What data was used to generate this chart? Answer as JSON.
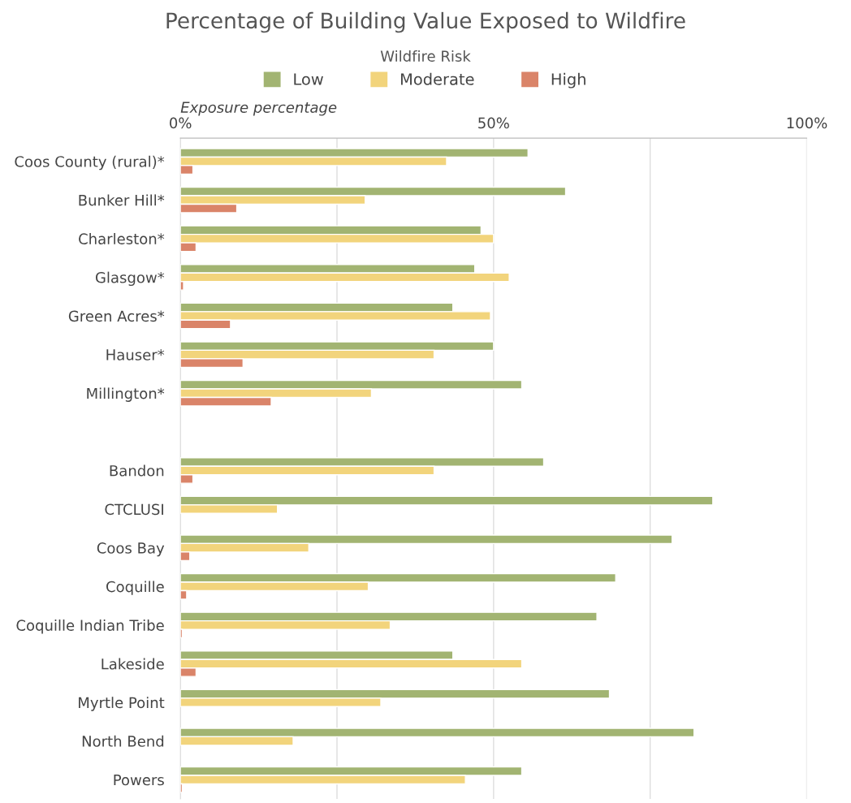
{
  "chart_data": {
    "type": "bar",
    "orientation": "horizontal",
    "title": "Percentage of Building Value Exposed to Wildfire",
    "legend_title": "Wildfire Risk",
    "xlabel": "Exposure percentage",
    "categories": [
      "Coos County (rural)*",
      "Bunker Hill*",
      "Charleston*",
      "Glasgow*",
      "Green Acres*",
      "Hauser*",
      "Millington*",
      null,
      "Bandon",
      "CTCLUSI",
      "Coos Bay",
      "Coquille",
      "Coquille Indian Tribe",
      "Lakeside",
      "Myrtle Point",
      "North Bend",
      "Powers"
    ],
    "series": [
      {
        "name": "Low",
        "color": "#a2b472",
        "values": [
          55.5,
          61.5,
          48,
          47,
          43.5,
          50,
          54.5,
          null,
          58,
          85,
          78.5,
          69.5,
          66.5,
          43.5,
          68.5,
          82,
          54.5
        ]
      },
      {
        "name": "Moderate",
        "color": "#f2d47c",
        "values": [
          42.5,
          29.5,
          50,
          52.5,
          49.5,
          40.5,
          30.5,
          null,
          40.5,
          15.5,
          20.5,
          30,
          33.5,
          54.5,
          32,
          18,
          45.5
        ]
      },
      {
        "name": "High",
        "color": "#da8469",
        "values": [
          2,
          9,
          2.5,
          0.5,
          8,
          10,
          14.5,
          null,
          2,
          null,
          1.5,
          1,
          0.3,
          2.5,
          null,
          null,
          0.3
        ]
      }
    ],
    "xlim": [
      0,
      100
    ],
    "xticks": [
      {
        "value": 0,
        "label": "0%"
      },
      {
        "value": 25,
        "label": null
      },
      {
        "value": 50,
        "label": "50%"
      },
      {
        "value": 75,
        "label": null
      },
      {
        "value": 100,
        "label": "100%"
      }
    ],
    "grid": "x",
    "legend": "top"
  }
}
